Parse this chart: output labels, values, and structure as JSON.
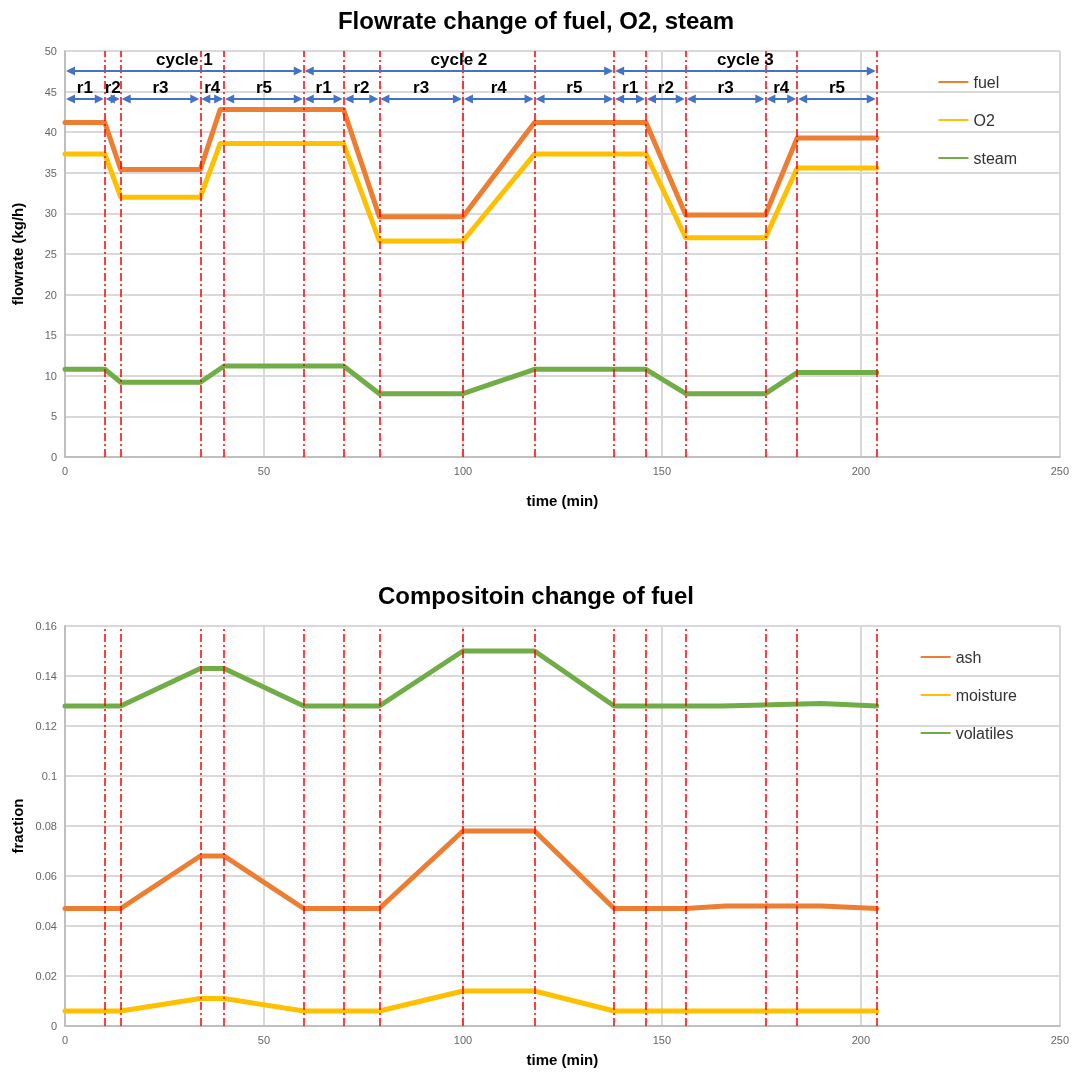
{
  "chart_data": [
    {
      "type": "line",
      "title": "Flowrate change of fuel, O2, steam",
      "xlabel": "time (min)",
      "ylabel": "flowrate (kg/h)",
      "xlim": [
        0,
        250
      ],
      "xticks": [
        0,
        50,
        100,
        150,
        200,
        250
      ],
      "ylim": [
        0,
        50
      ],
      "yticks": [
        0,
        5,
        10,
        15,
        20,
        25,
        30,
        35,
        40,
        45,
        50
      ],
      "grid": true,
      "legend": "top right",
      "marker": "none",
      "line_style": "solid",
      "series": [
        {
          "name": "fuel",
          "color": "#ed7d31",
          "x": [
            0,
            10,
            14,
            34,
            39,
            70,
            79,
            100,
            118,
            146,
            156,
            176,
            184,
            204
          ],
          "values": [
            41.2,
            41.2,
            35.4,
            35.4,
            42.8,
            42.8,
            29.6,
            29.6,
            41.2,
            41.2,
            29.8,
            29.8,
            39.3,
            39.3
          ]
        },
        {
          "name": "O2",
          "color": "#ffc000",
          "x": [
            0,
            10,
            14,
            34,
            39,
            70,
            79,
            100,
            118,
            146,
            156,
            176,
            184,
            204
          ],
          "values": [
            37.3,
            37.3,
            32.0,
            32.0,
            38.6,
            38.6,
            26.6,
            26.6,
            37.3,
            37.3,
            27.0,
            27.0,
            35.6,
            35.6
          ]
        },
        {
          "name": "steam",
          "color": "#70ad47",
          "x": [
            0,
            10,
            14,
            34,
            40,
            70,
            79,
            100,
            118,
            146,
            156,
            176,
            184,
            204
          ],
          "values": [
            10.8,
            10.8,
            9.2,
            9.2,
            11.2,
            11.2,
            7.8,
            7.8,
            10.8,
            10.8,
            7.8,
            7.8,
            10.4,
            10.4
          ]
        }
      ],
      "ref_lines": [
        {
          "axis": "x",
          "value": 10,
          "color": "#ff0000",
          "line_style": "dashed"
        },
        {
          "axis": "x",
          "value": 14,
          "color": "#ff0000",
          "line_style": "dashed"
        },
        {
          "axis": "x",
          "value": 34,
          "color": "#ff0000",
          "line_style": "dashed"
        },
        {
          "axis": "x",
          "value": 40,
          "color": "#ff0000",
          "line_style": "dashed"
        },
        {
          "axis": "x",
          "value": 60,
          "color": "#ff0000",
          "line_style": "dashed"
        },
        {
          "axis": "x",
          "value": 70,
          "color": "#ff0000",
          "line_style": "dashed"
        },
        {
          "axis": "x",
          "value": 79,
          "color": "#ff0000",
          "line_style": "dashed"
        },
        {
          "axis": "x",
          "value": 100,
          "color": "#ff0000",
          "line_style": "dashed"
        },
        {
          "axis": "x",
          "value": 118,
          "color": "#ff0000",
          "line_style": "dashed"
        },
        {
          "axis": "x",
          "value": 138,
          "color": "#ff0000",
          "line_style": "dashed"
        },
        {
          "axis": "x",
          "value": 146,
          "color": "#ff0000",
          "line_style": "dashed"
        },
        {
          "axis": "x",
          "value": 156,
          "color": "#ff0000",
          "line_style": "dashed"
        },
        {
          "axis": "x",
          "value": 176,
          "color": "#ff0000",
          "line_style": "dashed"
        },
        {
          "axis": "x",
          "value": 184,
          "color": "#ff0000",
          "line_style": "dashed"
        },
        {
          "axis": "x",
          "value": 204,
          "color": "#ff0000",
          "line_style": "dashed"
        }
      ],
      "annotations": [
        "cycle 1",
        "cycle 2",
        "cycle 3",
        "r1",
        "r2",
        "r3",
        "r4",
        "r5",
        "r1",
        "r2",
        "r3",
        "r4",
        "r5",
        "r1",
        "r2",
        "r3",
        "r4",
        "r5"
      ]
    },
    {
      "type": "line",
      "title": "Compositoin change of fuel",
      "xlabel": "time (min)",
      "ylabel": "fraction",
      "xlim": [
        0,
        250
      ],
      "xticks": [
        0,
        50,
        100,
        150,
        200,
        250
      ],
      "ylim": [
        0,
        0.16
      ],
      "yticks": [
        0,
        0.02,
        0.04,
        0.06,
        0.08,
        0.1,
        0.12,
        0.14,
        0.16
      ],
      "grid": true,
      "legend": "top right",
      "marker": "none",
      "line_style": "solid",
      "series": [
        {
          "name": "ash",
          "color": "#ed7d31",
          "x": [
            0,
            14,
            34,
            40,
            60,
            79,
            100,
            118,
            138,
            156,
            166,
            190,
            204
          ],
          "values": [
            0.047,
            0.047,
            0.068,
            0.068,
            0.047,
            0.047,
            0.078,
            0.078,
            0.047,
            0.047,
            0.048,
            0.048,
            0.047
          ]
        },
        {
          "name": "moisture",
          "color": "#ffc000",
          "x": [
            0,
            14,
            34,
            40,
            60,
            79,
            100,
            118,
            138,
            204
          ],
          "values": [
            0.006,
            0.006,
            0.011,
            0.011,
            0.006,
            0.006,
            0.014,
            0.014,
            0.006,
            0.006
          ]
        },
        {
          "name": "volatiles",
          "color": "#70ad47",
          "x": [
            0,
            14,
            34,
            40,
            60,
            79,
            100,
            118,
            138,
            165,
            190,
            204
          ],
          "values": [
            0.128,
            0.128,
            0.143,
            0.143,
            0.128,
            0.128,
            0.15,
            0.15,
            0.128,
            0.128,
            0.129,
            0.128
          ]
        }
      ],
      "ref_lines": [
        {
          "axis": "x",
          "value": 10,
          "color": "#ff0000",
          "line_style": "dashed"
        },
        {
          "axis": "x",
          "value": 14,
          "color": "#ff0000",
          "line_style": "dashed"
        },
        {
          "axis": "x",
          "value": 34,
          "color": "#ff0000",
          "line_style": "dashed"
        },
        {
          "axis": "x",
          "value": 40,
          "color": "#ff0000",
          "line_style": "dashed"
        },
        {
          "axis": "x",
          "value": 60,
          "color": "#ff0000",
          "line_style": "dashed"
        },
        {
          "axis": "x",
          "value": 70,
          "color": "#ff0000",
          "line_style": "dashed"
        },
        {
          "axis": "x",
          "value": 79,
          "color": "#ff0000",
          "line_style": "dashed"
        },
        {
          "axis": "x",
          "value": 100,
          "color": "#ff0000",
          "line_style": "dashed"
        },
        {
          "axis": "x",
          "value": 118,
          "color": "#ff0000",
          "line_style": "dashed"
        },
        {
          "axis": "x",
          "value": 138,
          "color": "#ff0000",
          "line_style": "dashed"
        },
        {
          "axis": "x",
          "value": 146,
          "color": "#ff0000",
          "line_style": "dashed"
        },
        {
          "axis": "x",
          "value": 156,
          "color": "#ff0000",
          "line_style": "dashed"
        },
        {
          "axis": "x",
          "value": 176,
          "color": "#ff0000",
          "line_style": "dashed"
        },
        {
          "axis": "x",
          "value": 184,
          "color": "#ff0000",
          "line_style": "dashed"
        },
        {
          "axis": "x",
          "value": 204,
          "color": "#ff0000",
          "line_style": "dashed"
        }
      ]
    }
  ]
}
